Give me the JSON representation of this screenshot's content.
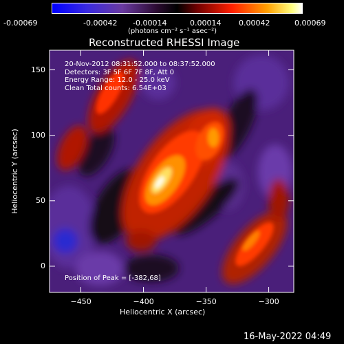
{
  "colorbar": {
    "ticks": [
      "-0.00069",
      "-0.00042",
      "-0.00014",
      "0.00014",
      "0.00042",
      "0.00069"
    ],
    "unit": "(photons cm⁻² s⁻¹ asec⁻²)"
  },
  "title": "Reconstructed RHESSI Image",
  "annotations": [
    "20-Nov-2012 08:31:52.000 to 08:37:52.000",
    "Detectors: 3F 5F 6F 7F 8F, Att 0",
    "Energy Range: 12.0 - 25.0 keV",
    "Clean     Total counts: 6.54E+03"
  ],
  "peak_text": "Position of Peak = [-382,68]",
  "footer_timestamp": "16-May-2022 04:49",
  "chart_data": {
    "type": "heatmap",
    "title": "Reconstructed RHESSI Image",
    "xlabel": "Heliocentric X (arcsec)",
    "ylabel": "Heliocentric Y (arcsec)",
    "xlim": [
      -475,
      -280
    ],
    "ylim": [
      -20,
      165
    ],
    "x_ticks": [
      -450,
      -400,
      -350,
      -300
    ],
    "y_ticks": [
      0,
      50,
      100,
      150
    ],
    "colorbar_range": [
      -0.00069,
      0.00069
    ],
    "peak": [
      -382,
      68
    ],
    "colormap": [
      "#0000ff",
      "#5522cc",
      "#1a0820",
      "#000000",
      "#a01000",
      "#ff3000",
      "#ffa000",
      "#ffffcc"
    ]
  }
}
